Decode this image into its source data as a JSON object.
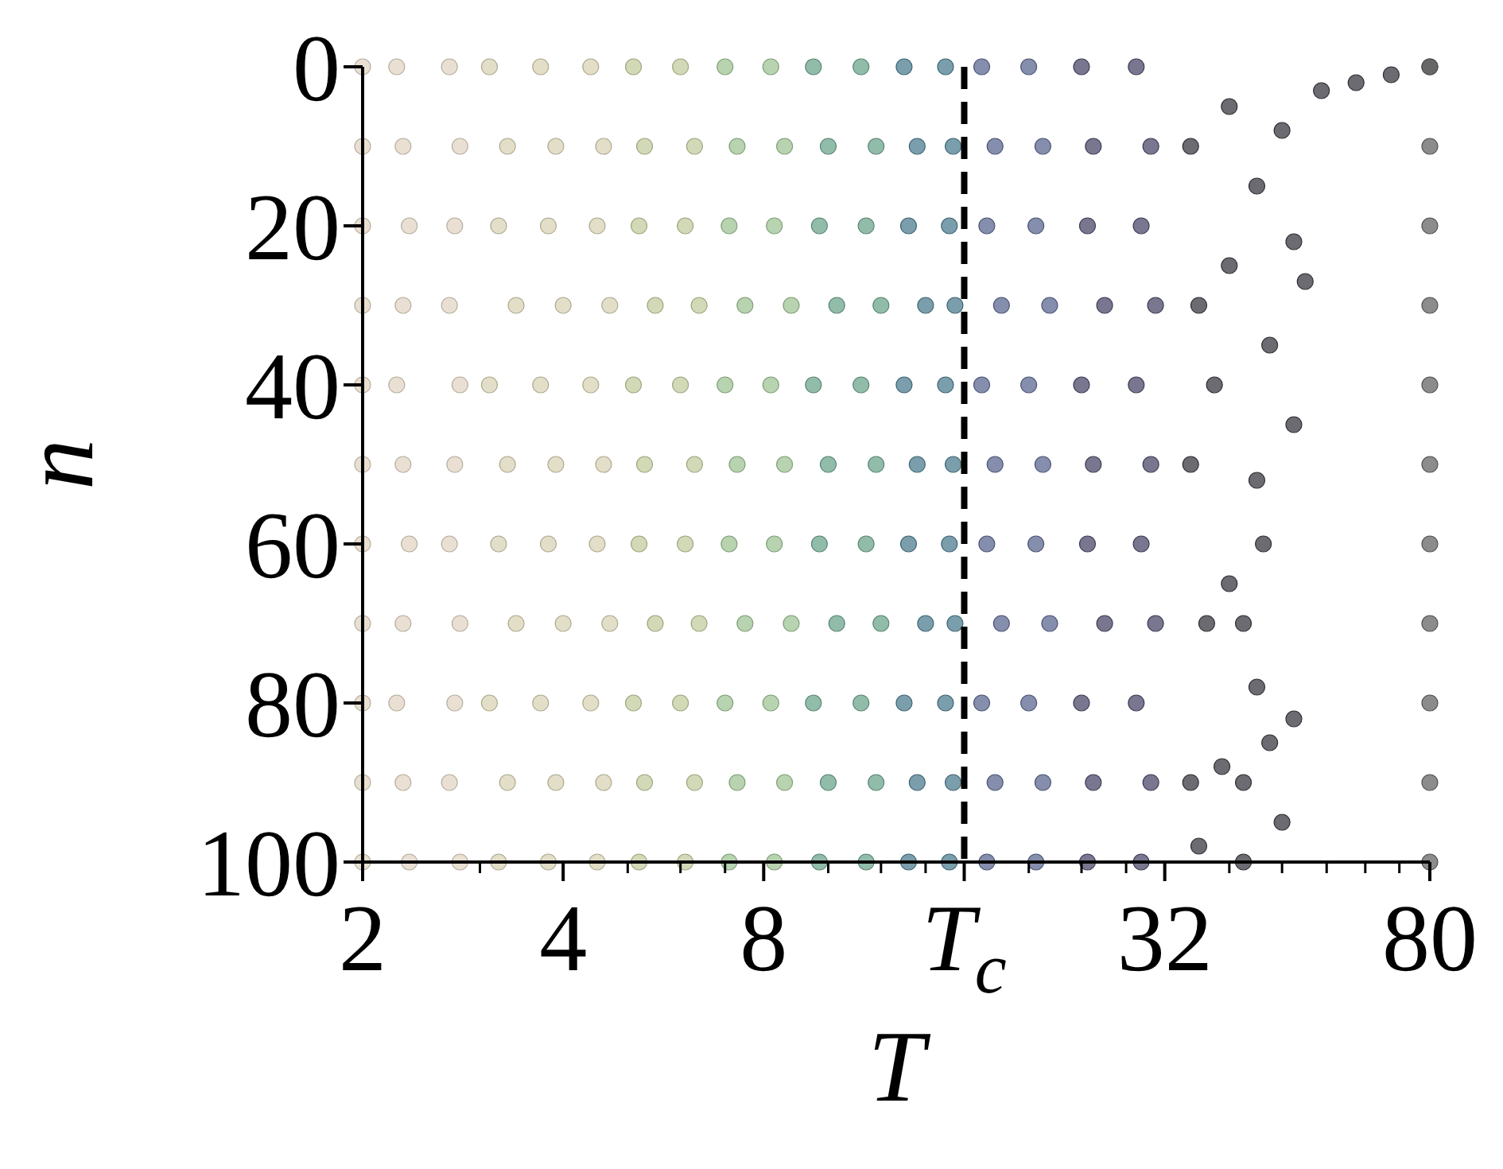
{
  "chart_data": {
    "type": "scatter",
    "xlabel": "T",
    "ylabel": "n",
    "log": "x",
    "xlim": [
      2,
      80
    ],
    "ylim": [
      100,
      0
    ],
    "xticks": [
      2,
      {
        "value": 3,
        "label": null
      },
      4,
      {
        "value": 5,
        "label": null
      },
      {
        "value": 6,
        "label": null
      },
      {
        "value": 7,
        "label": null
      },
      8,
      {
        "value": 10,
        "label": null
      },
      {
        "value": 12,
        "label": null
      },
      {
        "value": 14,
        "label": null
      },
      {
        "value": 16,
        "label": "T$_{c}$"
      },
      {
        "value": 20,
        "label": null
      },
      {
        "value": 24,
        "label": null
      },
      {
        "value": 28,
        "label": null
      },
      32,
      {
        "value": 40,
        "label": null
      },
      {
        "value": 48,
        "label": null
      },
      {
        "value": 56,
        "label": null
      },
      {
        "value": 64,
        "label": null
      },
      {
        "value": 72,
        "label": null
      },
      80
    ],
    "yticks": [
      0,
      20,
      40,
      60,
      80,
      100
    ],
    "grid": false,
    "marker": "circle",
    "ref_lines": [
      {
        "axis": "x",
        "value": 16,
        "color": "#000000",
        "line_style": "dashed"
      }
    ],
    "series": [
      {
        "color": "#e2d6c4",
        "x": [
          2,
          2,
          2,
          2,
          2,
          2,
          2,
          2,
          2,
          2,
          2,
          2.25,
          2.3,
          2.35,
          2.3,
          2.25,
          2.3,
          2.35,
          2.3,
          2.25,
          2.3,
          2.35,
          2.7,
          2.8,
          2.75,
          2.7,
          2.8,
          2.75,
          2.7,
          2.8,
          2.75,
          2.7,
          2.8
        ],
        "values": [
          0,
          10,
          20,
          30,
          40,
          50,
          60,
          70,
          80,
          90,
          100,
          0,
          10,
          20,
          30,
          40,
          50,
          60,
          70,
          80,
          90,
          100,
          0,
          10,
          20,
          30,
          40,
          50,
          60,
          70,
          80,
          90,
          100
        ]
      },
      {
        "color": "#d8d3b4",
        "x": [
          3.1,
          3.3,
          3.2,
          3.4,
          3.1,
          3.3,
          3.2,
          3.4,
          3.1,
          3.3,
          3.2,
          3.7,
          3.9,
          3.8,
          4,
          3.7,
          3.9,
          3.8,
          4,
          3.7,
          3.9,
          3.8,
          4.4,
          4.6,
          4.5,
          4.7,
          4.4,
          4.6,
          4.5,
          4.7,
          4.4,
          4.6,
          4.5
        ],
        "values": [
          0,
          10,
          20,
          30,
          40,
          50,
          60,
          70,
          80,
          90,
          100,
          0,
          10,
          20,
          30,
          40,
          50,
          60,
          70,
          80,
          90,
          100,
          0,
          10,
          20,
          30,
          40,
          50,
          60,
          70,
          80,
          90,
          100
        ]
      },
      {
        "color": "#c3cc9f",
        "x": [
          5.1,
          5.3,
          5.2,
          5.5,
          5.1,
          5.3,
          5.2,
          5.5,
          5.1,
          5.3,
          5.2,
          6,
          6.3,
          6.1,
          6.4,
          6,
          6.3,
          6.1,
          6.4,
          6,
          6.3,
          6.1
        ],
        "values": [
          0,
          10,
          20,
          30,
          40,
          50,
          60,
          70,
          80,
          90,
          100,
          0,
          10,
          20,
          30,
          40,
          50,
          60,
          70,
          80,
          90,
          100
        ]
      },
      {
        "color": "#9fc495",
        "x": [
          7,
          7.3,
          7.1,
          7.5,
          7,
          7.3,
          7.1,
          7.5,
          7,
          7.3,
          7.1,
          8.2,
          8.6,
          8.3,
          8.8,
          8.2,
          8.6,
          8.3,
          8.8,
          8.2,
          8.6,
          8.3
        ],
        "values": [
          0,
          10,
          20,
          30,
          40,
          50,
          60,
          70,
          80,
          90,
          100,
          0,
          10,
          20,
          30,
          40,
          50,
          60,
          70,
          80,
          90,
          100
        ]
      },
      {
        "color": "#6ea58e",
        "x": [
          9.5,
          10,
          9.7,
          10.3,
          9.5,
          10,
          9.7,
          10.3,
          9.5,
          10,
          9.7,
          11.2,
          11.8,
          11.4,
          12,
          11.2,
          11.8,
          11.4,
          12,
          11.2,
          11.8,
          11.4
        ],
        "values": [
          0,
          10,
          20,
          30,
          40,
          50,
          60,
          70,
          80,
          90,
          100,
          0,
          10,
          20,
          30,
          40,
          50,
          60,
          70,
          80,
          90,
          100
        ]
      },
      {
        "color": "#4e7d8f",
        "x": [
          13,
          13.6,
          13.2,
          14,
          13,
          13.6,
          13.2,
          14,
          13,
          13.6,
          13.2,
          15,
          15.4,
          15.2,
          15.5,
          15,
          15.4,
          15.2,
          15.5,
          15,
          15.4,
          15.2
        ],
        "values": [
          0,
          10,
          20,
          30,
          40,
          50,
          60,
          70,
          80,
          90,
          100,
          0,
          10,
          20,
          30,
          40,
          50,
          60,
          70,
          80,
          90,
          100
        ]
      },
      {
        "color": "#5c6890",
        "x": [
          17,
          17.8,
          17.3,
          18.2,
          17,
          17.8,
          17.3,
          18.2,
          17,
          17.8,
          17.3,
          20,
          21,
          20.5,
          21.5,
          20,
          21,
          20.5,
          21.5,
          20,
          21,
          20.5
        ],
        "values": [
          0,
          10,
          20,
          30,
          40,
          50,
          60,
          70,
          80,
          90,
          100,
          0,
          10,
          20,
          30,
          40,
          50,
          60,
          70,
          80,
          90,
          100
        ]
      },
      {
        "color": "#4b4a6a",
        "x": [
          24,
          25,
          24.5,
          26,
          24,
          25,
          24.5,
          26,
          24,
          25,
          24.5,
          29,
          30.5,
          29.5,
          31,
          29,
          30.5,
          29.5,
          31,
          29,
          30.5,
          29.5
        ],
        "values": [
          0,
          10,
          20,
          30,
          40,
          50,
          60,
          70,
          80,
          90,
          100,
          0,
          10,
          20,
          30,
          40,
          50,
          60,
          70,
          80,
          90,
          100
        ]
      },
      {
        "color": "#3b3a42",
        "x": [
          80,
          70,
          62,
          55,
          48,
          44,
          50,
          52,
          46,
          50,
          44,
          45,
          42,
          44,
          50,
          46,
          42,
          48,
          42,
          40,
          40,
          38,
          40,
          39,
          35,
          36,
          35,
          37,
          35,
          36
        ],
        "values": [
          0,
          1,
          2,
          3,
          8,
          15,
          22,
          27,
          35,
          45,
          52,
          60,
          70,
          78,
          82,
          85,
          90,
          95,
          100,
          5,
          25,
          40,
          65,
          88,
          10,
          30,
          50,
          70,
          90,
          98
        ]
      },
      {
        "color": "#666666",
        "x": [
          80,
          80,
          80,
          80,
          80,
          80,
          80,
          80,
          80,
          80,
          80
        ],
        "values": [
          0,
          10,
          20,
          30,
          40,
          50,
          60,
          70,
          80,
          90,
          100
        ]
      }
    ]
  }
}
